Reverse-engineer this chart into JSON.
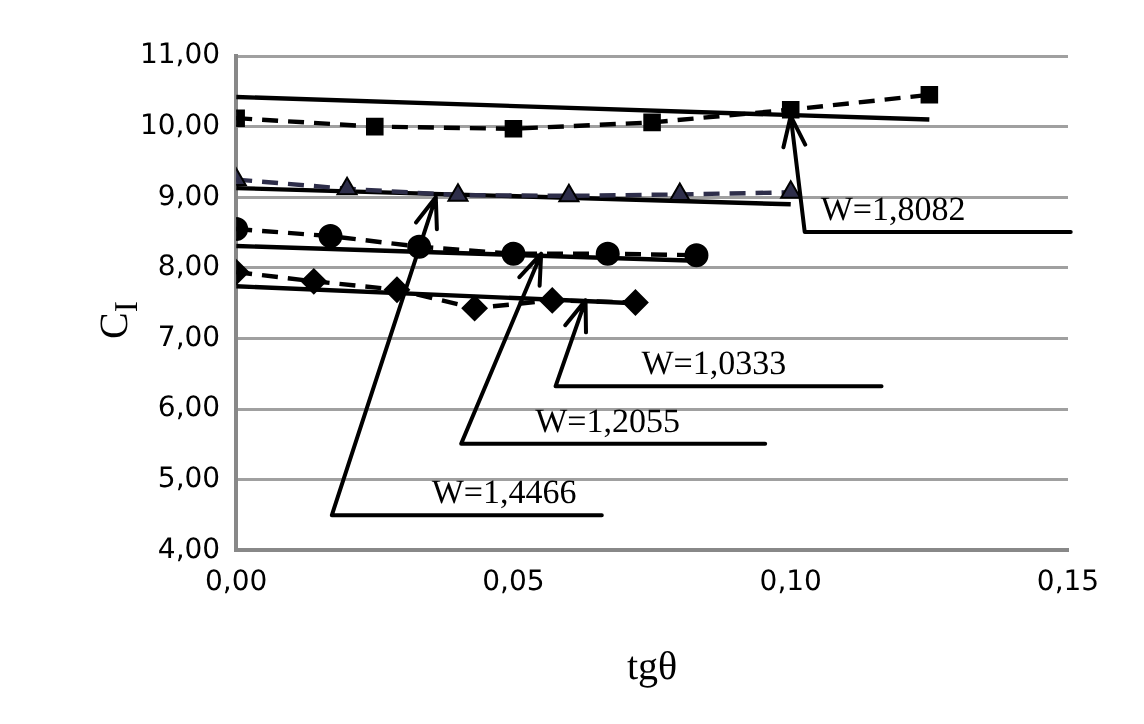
{
  "chart_data": {
    "type": "scatter",
    "xlabel": "tgθ",
    "ylabel": "C$_{I}$",
    "xlim": [
      0,
      0.15
    ],
    "ylim": [
      4,
      11
    ],
    "xticks": [
      {
        "value": 0,
        "label": "0,00"
      },
      {
        "value": 0.05,
        "label": "0,05"
      },
      {
        "value": 0.1,
        "label": "0,10"
      },
      {
        "value": 0.15,
        "label": "0,15"
      }
    ],
    "yticks": [
      {
        "value": 4,
        "label": "4,00"
      },
      {
        "value": 5,
        "label": "5,00"
      },
      {
        "value": 6,
        "label": "6,00"
      },
      {
        "value": 7,
        "label": "7,00"
      },
      {
        "value": 8,
        "label": "8,00"
      },
      {
        "value": 9,
        "label": "9,00"
      },
      {
        "value": 10,
        "label": "10,00"
      },
      {
        "value": 11,
        "label": "11,00"
      }
    ],
    "grid": "y",
    "legend": false,
    "series": [
      {
        "type": "line",
        "color": "#000000",
        "marker": "square",
        "line_style": "dashed",
        "x": [
          0,
          0.025,
          0.05,
          0.075,
          0.1,
          0.125
        ],
        "values": [
          10.12,
          10.0,
          9.97,
          10.06,
          10.24,
          10.45
        ]
      },
      {
        "type": "line",
        "color": "#000000",
        "marker": "none",
        "line_style": "solid",
        "x": [
          0,
          0.125
        ],
        "values": [
          10.42,
          10.1
        ]
      },
      {
        "type": "line",
        "color": "#2e2e4a",
        "marker": "triangle",
        "line_style": "dashed",
        "x": [
          0,
          0.02,
          0.04,
          0.06,
          0.08,
          0.1
        ],
        "values": [
          9.25,
          9.12,
          9.03,
          9.02,
          9.04,
          9.07
        ]
      },
      {
        "type": "line",
        "color": "#000000",
        "marker": "none",
        "line_style": "solid",
        "x": [
          0,
          0.1
        ],
        "values": [
          9.13,
          8.9
        ]
      },
      {
        "type": "line",
        "color": "#000000",
        "marker": "circle",
        "line_style": "dashed",
        "x": [
          0,
          0.017,
          0.033,
          0.05,
          0.067,
          0.083
        ],
        "values": [
          8.55,
          8.45,
          8.3,
          8.2,
          8.2,
          8.18
        ]
      },
      {
        "type": "line",
        "color": "#000000",
        "marker": "none",
        "line_style": "solid",
        "x": [
          0,
          0.083
        ],
        "values": [
          8.31,
          8.1
        ]
      },
      {
        "type": "line",
        "color": "#000000",
        "marker": "diamond",
        "line_style": "dashed",
        "x": [
          0,
          0.014,
          0.029,
          0.043,
          0.057,
          0.072
        ],
        "values": [
          7.94,
          7.81,
          7.69,
          7.43,
          7.54,
          7.51
        ]
      },
      {
        "type": "line",
        "color": "#000000",
        "marker": "none",
        "line_style": "solid",
        "x": [
          0,
          0.072
        ],
        "values": [
          7.74,
          7.5
        ]
      }
    ],
    "annotations": [
      {
        "text": "W=1,8082",
        "x": 0.1,
        "y": 10.15
      },
      {
        "text": "W=1,0333",
        "x": 0.063,
        "y": 7.54
      },
      {
        "text": "W=1,2055",
        "x": 0.055,
        "y": 8.2
      },
      {
        "text": "W=1,4466",
        "x": 0.036,
        "y": 9.0
      }
    ]
  }
}
